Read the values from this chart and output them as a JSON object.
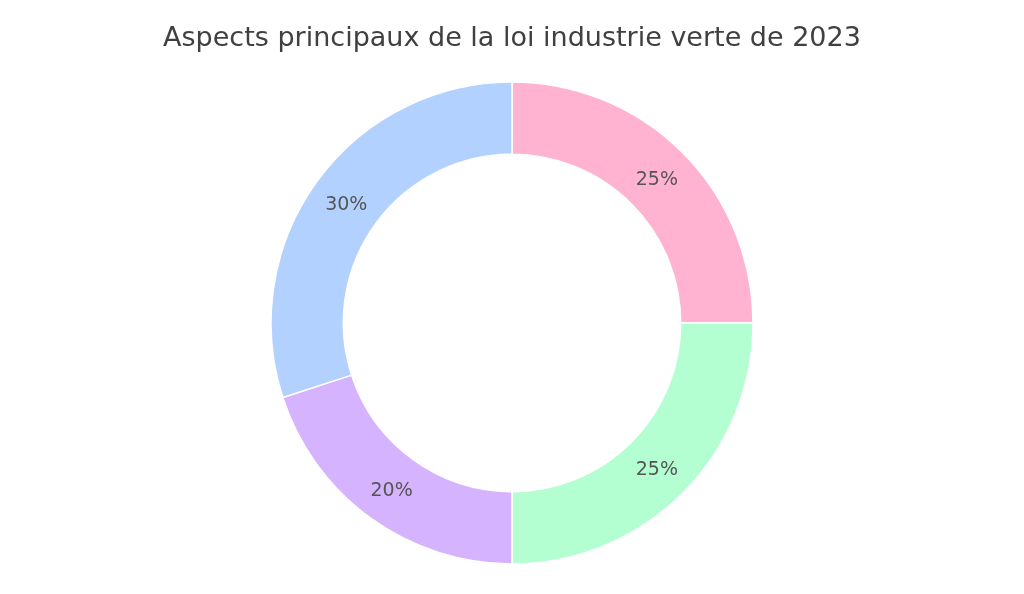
{
  "chart_data": {
    "type": "donut",
    "title": "Aspects principaux de la loi industrie verte de 2023",
    "categories": [
      null,
      null,
      null,
      null
    ],
    "values": [
      25,
      25,
      20,
      30
    ],
    "colors": [
      "#ffb3d1",
      "#b3ffd1",
      "#d5b3ff",
      "#b3d1ff"
    ],
    "value_labels": [
      "25%",
      "25%",
      "20%",
      "30%"
    ],
    "legend": false
  }
}
